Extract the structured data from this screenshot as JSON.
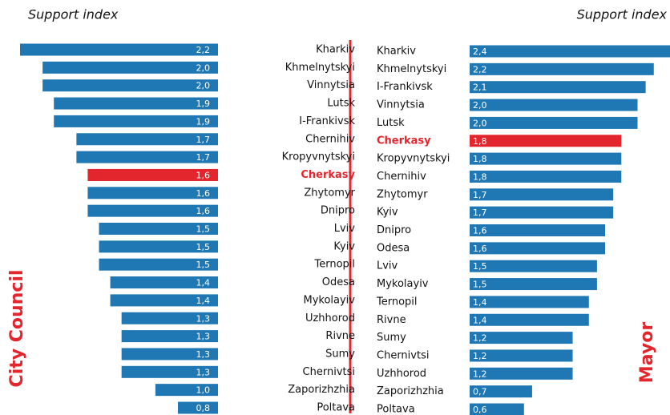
{
  "chart_data": [
    {
      "type": "bar",
      "orientation": "horizontal",
      "title": "City Council",
      "xlabel": "Support index",
      "x_reversed": true,
      "color": "#1f78b4",
      "categories": [
        "Kharkiv",
        "Khmelnytskyi",
        "Vinnytsia",
        "Lutsk",
        "I-Frankivsk",
        "Chernihiv",
        "Kropyvnytskyi",
        "Cherkasy",
        "Zhytomyr",
        "Dnipro",
        "Lviv",
        "Kyiv",
        "Ternopil",
        "Odesa",
        "Mykolayiv",
        "Uzhhorod",
        "Rivne",
        "Sumy",
        "Chernivtsi",
        "Zaporizhzhia",
        "Poltava"
      ],
      "values": [
        2.2,
        2.0,
        2.0,
        1.9,
        1.9,
        1.7,
        1.7,
        1.6,
        1.6,
        1.6,
        1.5,
        1.5,
        1.5,
        1.4,
        1.4,
        1.3,
        1.3,
        1.3,
        1.3,
        1.0,
        0.8
      ],
      "value_labels": [
        "2,2",
        "2,0",
        "2,0",
        "1,9",
        "1,9",
        "1,7",
        "1,7",
        "1,6",
        "1,6",
        "1,6",
        "1,5",
        "1,5",
        "1,5",
        "1,4",
        "1,4",
        "1,3",
        "1,3",
        "1,3",
        "1,3",
        "1,0",
        "0,8"
      ],
      "colors": [
        "#1f78b4",
        "#1f78b4",
        "#1f78b4",
        "#1f78b4",
        "#1f78b4",
        "#1f78b4",
        "#1f78b4",
        "#e3262e",
        "#1f78b4",
        "#1f78b4",
        "#1f78b4",
        "#1f78b4",
        "#1f78b4",
        "#1f78b4",
        "#1f78b4",
        "#1f78b4",
        "#1f78b4",
        "#1f78b4",
        "#1f78b4",
        "#1f78b4",
        "#1f78b4"
      ],
      "xlim": [
        0.445,
        2.2
      ]
    },
    {
      "type": "bar",
      "orientation": "horizontal",
      "title": "Mayor",
      "xlabel": "Support index",
      "x_reversed": false,
      "color": "#1f78b4",
      "categories": [
        "Kharkiv",
        "Khmelnytskyi",
        "I-Frankivsk",
        "Vinnytsia",
        "Lutsk",
        "Cherkasy",
        "Kropyvnytskyi",
        "Chernihiv",
        "Zhytomyr",
        "Kyiv",
        "Dnipro",
        "Odesa",
        "Lviv",
        "Mykolayiv",
        "Ternopil",
        "Rivne",
        "Sumy",
        "Chernivtsi",
        "Uzhhorod",
        "Zaporizhzhia",
        "Poltava"
      ],
      "values": [
        2.4,
        2.2,
        2.1,
        2.0,
        2.0,
        1.8,
        1.8,
        1.8,
        1.7,
        1.7,
        1.6,
        1.6,
        1.5,
        1.5,
        1.4,
        1.4,
        1.2,
        1.2,
        1.2,
        0.7,
        0.6
      ],
      "value_labels": [
        "2,4",
        "2,2",
        "2,1",
        "2,0",
        "2,0",
        "1,8",
        "1,8",
        "1,8",
        "1,7",
        "1,7",
        "1,6",
        "1,6",
        "1,5",
        "1,5",
        "1,4",
        "1,4",
        "1,2",
        "1,2",
        "1,2",
        "0,7",
        "0,6"
      ],
      "colors": [
        "#1f78b4",
        "#1f78b4",
        "#1f78b4",
        "#1f78b4",
        "#1f78b4",
        "#e3262e",
        "#1f78b4",
        "#1f78b4",
        "#1f78b4",
        "#1f78b4",
        "#1f78b4",
        "#1f78b4",
        "#1f78b4",
        "#1f78b4",
        "#1f78b4",
        "#1f78b4",
        "#1f78b4",
        "#1f78b4",
        "#1f78b4",
        "#1f78b4",
        "#1f78b4"
      ],
      "xlim": [
        -0.07,
        2.4
      ]
    }
  ]
}
